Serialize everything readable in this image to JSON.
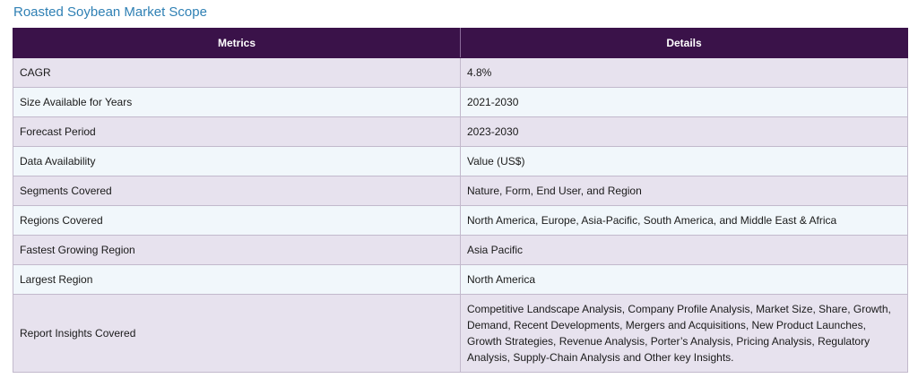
{
  "title": "Roasted Soybean Market Scope",
  "table": {
    "headers": [
      "Metrics",
      "Details"
    ],
    "rows": [
      {
        "metric": "CAGR",
        "detail": "4.8%"
      },
      {
        "metric": "Size Available for Years",
        "detail": "2021-2030"
      },
      {
        "metric": "Forecast Period",
        "detail": "2023-2030"
      },
      {
        "metric": "Data Availability",
        "detail": "Value (US$)"
      },
      {
        "metric": "Segments Covered",
        "detail": "Nature, Form, End User, and Region"
      },
      {
        "metric": "Regions Covered",
        "detail": "North America, Europe, Asia-Pacific, South America, and Middle East & Africa"
      },
      {
        "metric": "Fastest Growing Region",
        "detail": "Asia Pacific"
      },
      {
        "metric": "Largest Region",
        "detail": "North America"
      },
      {
        "metric": "Report Insights Covered",
        "detail": "Competitive Landscape Analysis, Company Profile Analysis, Market Size, Share, Growth, Demand, Recent Developments, Mergers and Acquisitions, New Product Launches, Growth Strategies, Revenue Analysis, Porter’s Analysis, Pricing Analysis, Regulatory Analysis, Supply-Chain Analysis and Other key Insights."
      }
    ]
  },
  "colors": {
    "title": "#2f80b4",
    "header_bg": "#3a1249",
    "row_odd": "#e7e2ee",
    "row_even": "#f1f7fb"
  }
}
